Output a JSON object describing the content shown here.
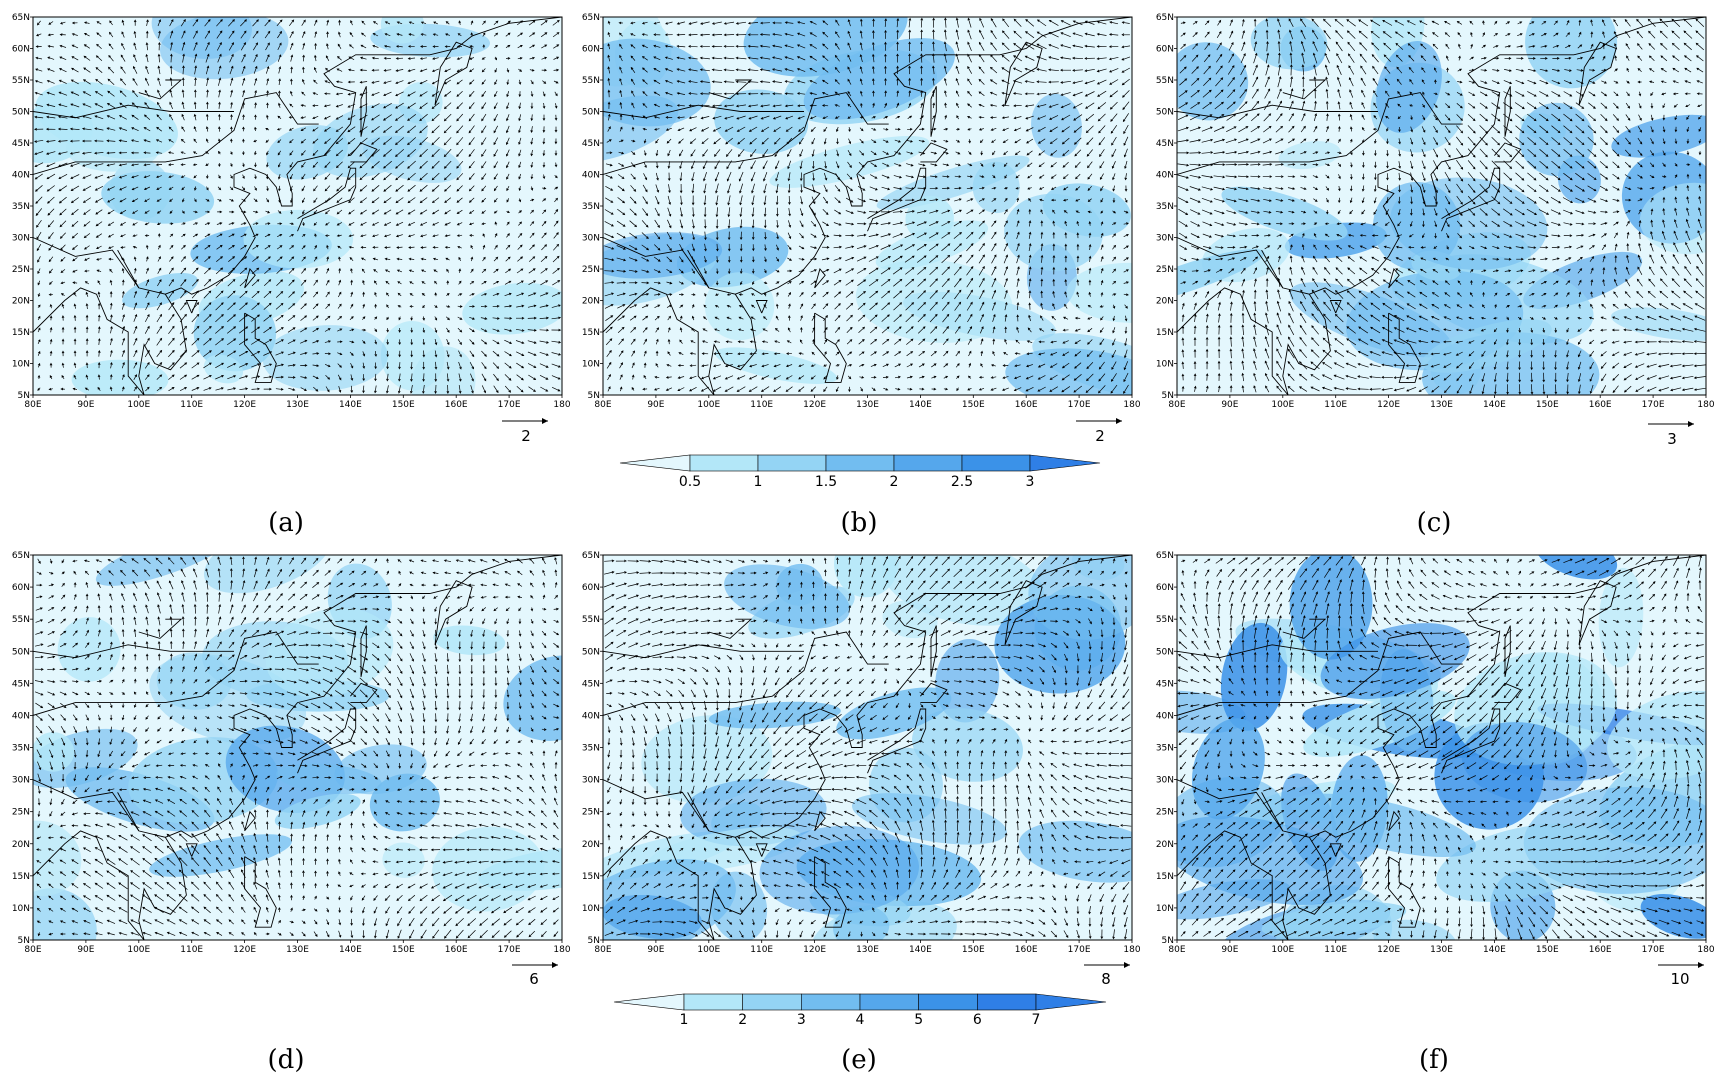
{
  "colors": {
    "shade_levels": [
      "#e4f7fd",
      "#b3e7f8",
      "#94d4f4",
      "#72bdf0",
      "#55a7ec",
      "#3b92e8",
      "#2f7fe6"
    ],
    "coast": "#000000",
    "vector": "#000000"
  },
  "axes": {
    "lon_ticks": [
      "80E",
      "90E",
      "100E",
      "110E",
      "120E",
      "130E",
      "140E",
      "150E",
      "160E",
      "170E",
      "180"
    ],
    "lat_ticks": [
      "5N",
      "10N",
      "15N",
      "20N",
      "25N",
      "30N",
      "35N",
      "40N",
      "45N",
      "50N",
      "55N",
      "60N",
      "65N"
    ]
  },
  "panels": [
    {
      "caption": "(a)",
      "ref_vector": "2",
      "intensity": 0.25,
      "seed": 11
    },
    {
      "caption": "(b)",
      "ref_vector": "2",
      "intensity": 0.4,
      "seed": 23
    },
    {
      "caption": "(c)",
      "ref_vector": "3",
      "intensity": 0.55,
      "seed": 37
    },
    {
      "caption": "(d)",
      "ref_vector": "6",
      "intensity": 0.35,
      "seed": 41
    },
    {
      "caption": "(e)",
      "ref_vector": "8",
      "intensity": 0.55,
      "seed": 53
    },
    {
      "caption": "(f)",
      "ref_vector": "10",
      "intensity": 0.8,
      "seed": 67
    }
  ],
  "colorbars": [
    {
      "ticks": [
        "0.5",
        "1",
        "1.5",
        "2",
        "2.5",
        "3"
      ]
    },
    {
      "ticks": [
        "1",
        "2",
        "3",
        "4",
        "5",
        "6",
        "7"
      ]
    }
  ]
}
